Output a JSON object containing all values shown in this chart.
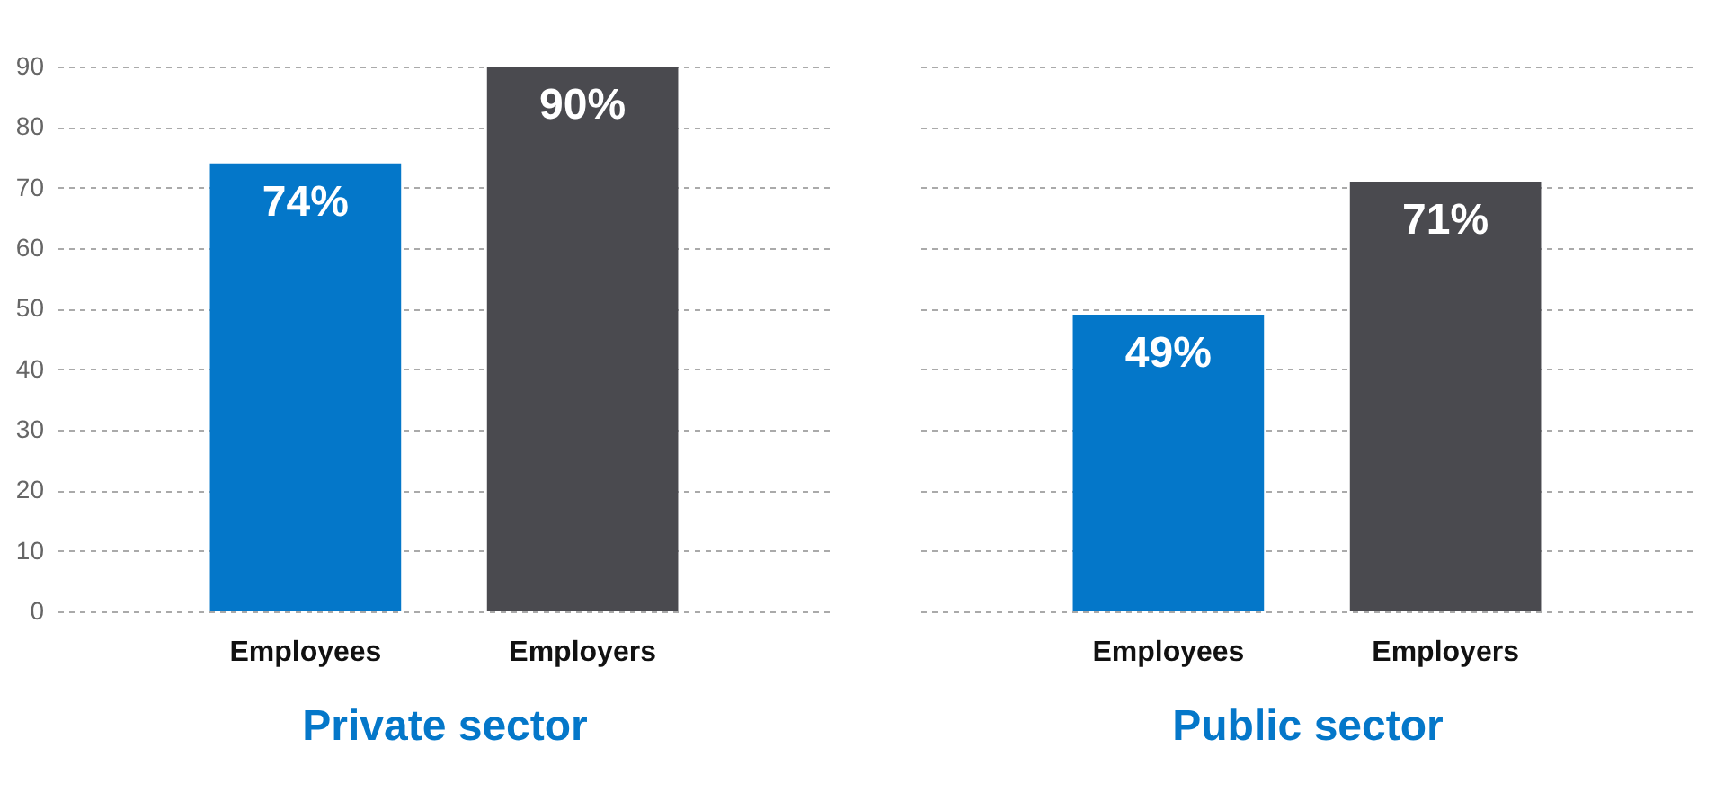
{
  "chart_data": [
    {
      "type": "bar",
      "xlabel": "Private sector",
      "categories": [
        "Employees",
        "Employers"
      ],
      "values": [
        74,
        90
      ],
      "colors": [
        "#0477c9",
        "#4a4a4f"
      ],
      "value_labels": [
        "74%",
        "90%"
      ],
      "ylim": [
        0,
        90
      ],
      "yticks": [
        0,
        10,
        20,
        30,
        40,
        50,
        60,
        70,
        80,
        90
      ],
      "grid": "y"
    },
    {
      "type": "bar",
      "xlabel": "Public sector",
      "categories": [
        "Employees",
        "Employers"
      ],
      "values": [
        49,
        71
      ],
      "colors": [
        "#0477c9",
        "#4a4a4f"
      ],
      "value_labels": [
        "49%",
        "71%"
      ],
      "ylim": [
        0,
        90
      ],
      "yticks": [
        0,
        10,
        20,
        30,
        40,
        50,
        60,
        70,
        80,
        90
      ],
      "grid": "y",
      "tick_labels": "x"
    }
  ]
}
